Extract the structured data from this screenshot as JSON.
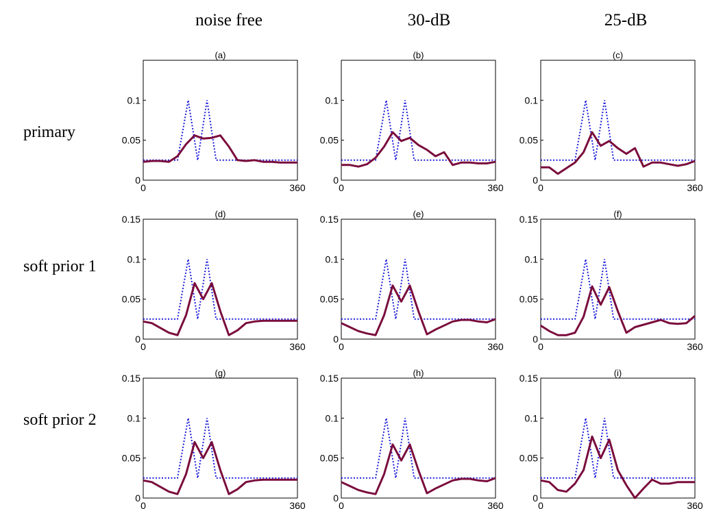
{
  "figure": {
    "column_titles": [
      "noise free",
      "30-dB",
      "25-dB"
    ],
    "row_titles": [
      "primary",
      "soft prior 1",
      "soft prior 2"
    ]
  },
  "colors": {
    "true_profile": "#1a1adb",
    "estimated_profile": "#7a0c3c"
  },
  "chart_data": [
    {
      "type": "line",
      "panel_label": "(a)",
      "xlim": [
        0,
        360
      ],
      "ylim": [
        0,
        0.15
      ],
      "x_ticks": [
        "0",
        "360"
      ],
      "y_ticks": [
        "0",
        "0.05",
        "0.1"
      ],
      "series": [
        {
          "x": [
            0,
            80,
            105,
            127,
            149,
            170,
            200,
            360
          ],
          "y": [
            0.025,
            0.025,
            0.1,
            0.025,
            0.1,
            0.025,
            0.025,
            0.025
          ]
        },
        {
          "x": [
            0,
            20,
            40,
            60,
            80,
            100,
            120,
            140,
            160,
            180,
            200,
            220,
            240,
            260,
            280,
            300,
            320,
            340,
            360
          ],
          "y": [
            0.023,
            0.024,
            0.024,
            0.023,
            0.03,
            0.045,
            0.056,
            0.052,
            0.053,
            0.056,
            0.042,
            0.025,
            0.024,
            0.025,
            0.023,
            0.023,
            0.022,
            0.022,
            0.022
          ]
        }
      ]
    },
    {
      "type": "line",
      "panel_label": "(b)",
      "xlim": [
        0,
        360
      ],
      "ylim": [
        0,
        0.15
      ],
      "x_ticks": [
        "0",
        "360"
      ],
      "y_ticks": [
        "0",
        "0.05",
        "0.1"
      ],
      "series": [
        {
          "x": [
            0,
            80,
            105,
            127,
            149,
            170,
            200,
            360
          ],
          "y": [
            0.025,
            0.025,
            0.1,
            0.025,
            0.1,
            0.025,
            0.025,
            0.025
          ]
        },
        {
          "x": [
            0,
            20,
            40,
            60,
            80,
            100,
            120,
            140,
            160,
            180,
            200,
            220,
            240,
            260,
            280,
            300,
            320,
            340,
            360
          ],
          "y": [
            0.019,
            0.019,
            0.017,
            0.02,
            0.028,
            0.042,
            0.06,
            0.049,
            0.053,
            0.044,
            0.038,
            0.03,
            0.035,
            0.019,
            0.022,
            0.022,
            0.021,
            0.021,
            0.023
          ]
        }
      ]
    },
    {
      "type": "line",
      "panel_label": "(c)",
      "xlim": [
        0,
        360
      ],
      "ylim": [
        0,
        0.15
      ],
      "x_ticks": [
        "0",
        "360"
      ],
      "y_ticks": [
        "0",
        "0.05",
        "0.1"
      ],
      "series": [
        {
          "x": [
            0,
            80,
            105,
            127,
            149,
            170,
            200,
            360
          ],
          "y": [
            0.025,
            0.025,
            0.1,
            0.025,
            0.1,
            0.025,
            0.025,
            0.025
          ]
        },
        {
          "x": [
            0,
            20,
            40,
            60,
            80,
            100,
            120,
            140,
            160,
            180,
            200,
            220,
            240,
            260,
            280,
            300,
            320,
            340,
            360
          ],
          "y": [
            0.016,
            0.016,
            0.008,
            0.015,
            0.022,
            0.035,
            0.06,
            0.043,
            0.049,
            0.04,
            0.033,
            0.04,
            0.017,
            0.022,
            0.022,
            0.02,
            0.018,
            0.02,
            0.024
          ]
        }
      ]
    },
    {
      "type": "line",
      "panel_label": "(d)",
      "xlim": [
        0,
        360
      ],
      "ylim": [
        0,
        0.15
      ],
      "x_ticks": [
        "0",
        "360"
      ],
      "y_ticks": [
        "0",
        "0.05",
        "0.1",
        "0.15"
      ],
      "series": [
        {
          "x": [
            0,
            80,
            105,
            127,
            149,
            170,
            200,
            360
          ],
          "y": [
            0.025,
            0.025,
            0.1,
            0.025,
            0.1,
            0.025,
            0.025,
            0.025
          ]
        },
        {
          "x": [
            0,
            20,
            40,
            60,
            80,
            100,
            120,
            140,
            160,
            180,
            200,
            220,
            240,
            260,
            280,
            300,
            320,
            340,
            360
          ],
          "y": [
            0.022,
            0.02,
            0.014,
            0.008,
            0.005,
            0.03,
            0.07,
            0.05,
            0.07,
            0.035,
            0.005,
            0.011,
            0.02,
            0.022,
            0.023,
            0.023,
            0.023,
            0.023,
            0.023
          ]
        }
      ]
    },
    {
      "type": "line",
      "panel_label": "(e)",
      "xlim": [
        0,
        360
      ],
      "ylim": [
        0,
        0.15
      ],
      "x_ticks": [
        "0",
        "360"
      ],
      "y_ticks": [
        "0",
        "0.05",
        "0.1",
        "0.15"
      ],
      "series": [
        {
          "x": [
            0,
            80,
            105,
            127,
            149,
            170,
            200,
            360
          ],
          "y": [
            0.025,
            0.025,
            0.1,
            0.025,
            0.1,
            0.025,
            0.025,
            0.025
          ]
        },
        {
          "x": [
            0,
            20,
            40,
            60,
            80,
            100,
            120,
            140,
            160,
            180,
            200,
            220,
            240,
            260,
            280,
            300,
            320,
            340,
            360
          ],
          "y": [
            0.02,
            0.015,
            0.01,
            0.007,
            0.005,
            0.03,
            0.067,
            0.047,
            0.067,
            0.035,
            0.006,
            0.012,
            0.017,
            0.022,
            0.024,
            0.024,
            0.022,
            0.021,
            0.025
          ]
        }
      ]
    },
    {
      "type": "line",
      "panel_label": "(f)",
      "xlim": [
        0,
        360
      ],
      "ylim": [
        0,
        0.15
      ],
      "x_ticks": [
        "0",
        "360"
      ],
      "y_ticks": [
        "0",
        "0.05",
        "0.1",
        "0.15"
      ],
      "series": [
        {
          "x": [
            0,
            80,
            105,
            127,
            149,
            170,
            200,
            360
          ],
          "y": [
            0.025,
            0.025,
            0.1,
            0.025,
            0.1,
            0.025,
            0.025,
            0.025
          ]
        },
        {
          "x": [
            0,
            20,
            40,
            60,
            80,
            100,
            120,
            140,
            160,
            180,
            200,
            220,
            240,
            260,
            280,
            300,
            320,
            340,
            360
          ],
          "y": [
            0.017,
            0.01,
            0.005,
            0.005,
            0.008,
            0.028,
            0.066,
            0.043,
            0.065,
            0.035,
            0.008,
            0.015,
            0.018,
            0.021,
            0.024,
            0.02,
            0.019,
            0.02,
            0.029
          ]
        }
      ]
    },
    {
      "type": "line",
      "panel_label": "(g)",
      "xlim": [
        0,
        360
      ],
      "ylim": [
        0,
        0.15
      ],
      "x_ticks": [
        "0",
        "360"
      ],
      "y_ticks": [
        "0",
        "0.05",
        "0.1",
        "0.15"
      ],
      "series": [
        {
          "x": [
            0,
            80,
            105,
            127,
            149,
            170,
            200,
            360
          ],
          "y": [
            0.025,
            0.025,
            0.1,
            0.025,
            0.1,
            0.025,
            0.025,
            0.025
          ]
        },
        {
          "x": [
            0,
            20,
            40,
            60,
            80,
            100,
            120,
            140,
            160,
            180,
            200,
            220,
            240,
            260,
            280,
            300,
            320,
            340,
            360
          ],
          "y": [
            0.022,
            0.02,
            0.014,
            0.008,
            0.005,
            0.03,
            0.07,
            0.05,
            0.07,
            0.035,
            0.005,
            0.011,
            0.02,
            0.022,
            0.023,
            0.023,
            0.023,
            0.023,
            0.023
          ]
        }
      ]
    },
    {
      "type": "line",
      "panel_label": "(h)",
      "xlim": [
        0,
        360
      ],
      "ylim": [
        0,
        0.15
      ],
      "x_ticks": [
        "0",
        "360"
      ],
      "y_ticks": [
        "0",
        "0.05",
        "0.1",
        "0.15"
      ],
      "series": [
        {
          "x": [
            0,
            80,
            105,
            127,
            149,
            170,
            200,
            360
          ],
          "y": [
            0.025,
            0.025,
            0.1,
            0.025,
            0.1,
            0.025,
            0.025,
            0.025
          ]
        },
        {
          "x": [
            0,
            20,
            40,
            60,
            80,
            100,
            120,
            140,
            160,
            180,
            200,
            220,
            240,
            260,
            280,
            300,
            320,
            340,
            360
          ],
          "y": [
            0.02,
            0.015,
            0.01,
            0.007,
            0.005,
            0.03,
            0.067,
            0.047,
            0.067,
            0.035,
            0.006,
            0.012,
            0.017,
            0.022,
            0.024,
            0.024,
            0.022,
            0.021,
            0.025
          ]
        }
      ]
    },
    {
      "type": "line",
      "panel_label": "(i)",
      "xlim": [
        0,
        360
      ],
      "ylim": [
        0,
        0.15
      ],
      "x_ticks": [
        "0",
        "360"
      ],
      "y_ticks": [
        "0",
        "0.05",
        "0.1",
        "0.15"
      ],
      "series": [
        {
          "x": [
            0,
            80,
            105,
            127,
            149,
            170,
            200,
            360
          ],
          "y": [
            0.025,
            0.025,
            0.1,
            0.025,
            0.1,
            0.025,
            0.025,
            0.025
          ]
        },
        {
          "x": [
            0,
            20,
            40,
            60,
            80,
            100,
            120,
            140,
            160,
            180,
            200,
            220,
            240,
            260,
            280,
            300,
            320,
            340,
            360
          ],
          "y": [
            0.022,
            0.02,
            0.01,
            0.008,
            0.018,
            0.035,
            0.077,
            0.05,
            0.073,
            0.035,
            0.016,
            0.0,
            0.012,
            0.023,
            0.018,
            0.018,
            0.02,
            0.02,
            0.02
          ]
        }
      ]
    }
  ]
}
